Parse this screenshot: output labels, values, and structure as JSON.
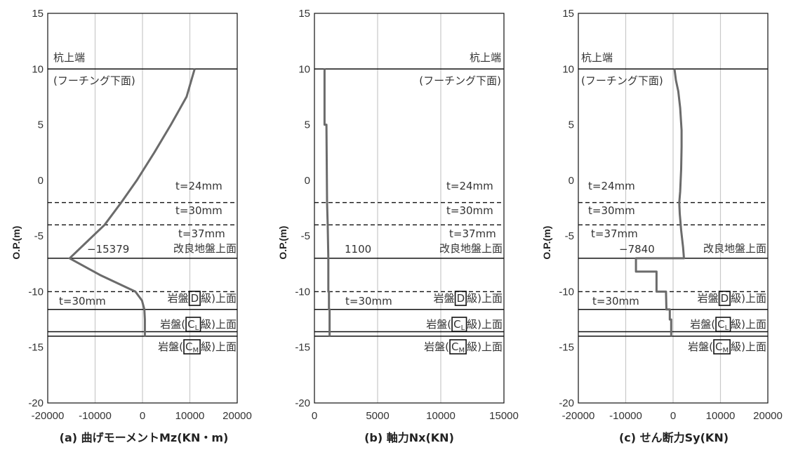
{
  "chart_data": [
    {
      "type": "line",
      "panel": "a",
      "title": "",
      "xlabel": "(a) 曲げモーメントMz(KN・m)",
      "ylabel": "O.P.(m)",
      "xlim": [
        -20000,
        20000
      ],
      "ylim": [
        -20,
        15
      ],
      "xticks": [
        -20000,
        -10000,
        0,
        10000,
        20000
      ],
      "yticks": [
        -20,
        -15,
        -10,
        -5,
        0,
        5,
        10,
        15
      ],
      "grid": true,
      "series": [
        {
          "x": [
            11000,
            9300,
            6000,
            2500,
            -1200,
            -4500,
            -8000,
            -15379,
            -9000,
            -1500,
            -100,
            400,
            500,
            500,
            500,
            500
          ],
          "y": [
            10,
            7.5,
            5,
            2.5,
            0,
            -2,
            -4,
            -7,
            -8.5,
            -10,
            -10.8,
            -11.6,
            -12.5,
            -13.3,
            -13.6,
            -14
          ]
        }
      ],
      "value_label": "−15379",
      "annotations": [
        "杭上端",
        "(フーチング下面)",
        "t=24mm",
        "t=30mm",
        "t=37mm",
        "改良地盤上面",
        "t=30mm"
      ],
      "rock_labels": {
        "D": {
          "pre": "岩盤",
          "box": "D",
          "post": "級)上面"
        },
        "CL": {
          "pre": "岩盤(",
          "box": "C",
          "sub": "L",
          "post": "級)上面"
        },
        "CM": {
          "pre": "岩盤(",
          "box": "C",
          "sub": "M",
          "post": "級)上面"
        }
      }
    },
    {
      "type": "line",
      "panel": "b",
      "title": "",
      "xlabel": "(b) 軸力Nx(KN)",
      "ylabel": "O.P.(m)",
      "xlim": [
        0,
        15000
      ],
      "ylim": [
        -20,
        15
      ],
      "xticks": [
        0,
        5000,
        10000,
        15000
      ],
      "yticks": [
        -20,
        -15,
        -10,
        -5,
        0,
        5,
        10,
        15
      ],
      "grid": true,
      "series": [
        {
          "x": [
            800,
            800,
            950,
            1000,
            1050,
            1100,
            1100,
            1150,
            1150,
            1200,
            1200
          ],
          "y": [
            10,
            5,
            5,
            -2,
            -4,
            -7,
            -10,
            -10,
            -11.6,
            -11.6,
            -14
          ]
        }
      ],
      "value_label": "1100",
      "annotations": [
        "杭上端",
        "(フーチング下面)",
        "t=24mm",
        "t=30mm",
        "t=37mm",
        "改良地盤上面",
        "t=30mm"
      ],
      "rock_labels": {
        "D": {
          "pre": "岩盤",
          "box": "D",
          "post": "級)上面"
        },
        "CL": {
          "pre": "岩盤(",
          "box": "C",
          "sub": "L",
          "post": "級)上面"
        },
        "CM": {
          "pre": "岩盤(",
          "box": "C",
          "sub": "M",
          "post": "級)上面"
        }
      }
    },
    {
      "type": "line",
      "panel": "c",
      "title": "",
      "xlabel": "(c) せん断力Sy(KN)",
      "ylabel": "O.P.(m)",
      "xlim": [
        -20000,
        20000
      ],
      "ylim": [
        -20,
        15
      ],
      "xticks": [
        -20000,
        -10000,
        0,
        10000,
        20000
      ],
      "yticks": [
        -20,
        -15,
        -10,
        -5,
        0,
        5,
        10,
        15
      ],
      "grid": true,
      "series": [
        {
          "x": [
            300,
            600,
            1100,
            1500,
            1800,
            1800,
            1700,
            1500,
            1300,
            1400,
            1700,
            2100,
            2300,
            2300,
            -7840,
            -7840,
            -7500,
            -3500,
            -3500,
            -1500,
            -1400,
            -700,
            -700,
            -400,
            -400
          ],
          "y": [
            10,
            9,
            8,
            6.5,
            4.5,
            3,
            1,
            -1,
            -2,
            -3,
            -4.5,
            -6,
            -7,
            -7,
            -7,
            -8.2,
            -8.2,
            -8.2,
            -10,
            -10,
            -11.6,
            -11.6,
            -12.5,
            -12.5,
            -14
          ]
        }
      ],
      "value_label": "−7840",
      "annotations": [
        "杭上端",
        "(フーチング下面)",
        "t=24mm",
        "t=30mm",
        "t=37mm",
        "改良地盤上面",
        "t=30mm"
      ],
      "rock_labels": {
        "D": {
          "pre": "岩盤",
          "box": "D",
          "post": "級)上面"
        },
        "CL": {
          "pre": "岩盤(",
          "box": "C",
          "sub": "L",
          "post": "級)上面"
        },
        "CM": {
          "pre": "岩盤(",
          "box": "C",
          "sub": "M",
          "post": "級)上面"
        }
      }
    }
  ],
  "colors": {
    "curve": "#6b6b6b",
    "grid": "#c8c8c8",
    "line": "#111111",
    "text": "#333333"
  }
}
